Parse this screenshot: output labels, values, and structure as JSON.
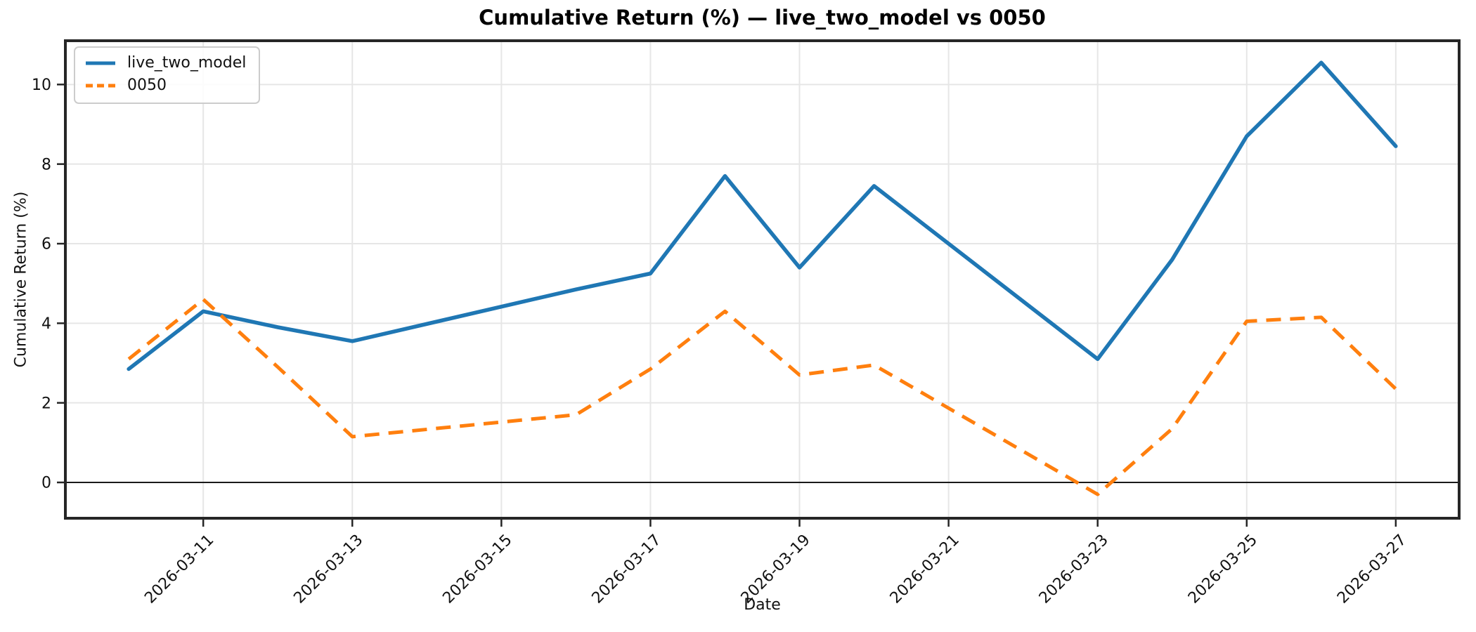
{
  "title": "Cumulative Return (%) — live_two_model vs 0050",
  "axes": {
    "x_label": "Date",
    "y_label": "Cumulative Return (%)"
  },
  "chart_data": {
    "type": "line",
    "title": "Cumulative Return (%) — live_two_model vs 0050",
    "xlabel": "Date",
    "ylabel": "Cumulative Return (%)",
    "x": [
      "2026-03-10",
      "2026-03-11",
      "2026-03-12",
      "2026-03-13",
      "2026-03-16",
      "2026-03-17",
      "2026-03-18",
      "2026-03-19",
      "2026-03-20",
      "2026-03-23",
      "2026-03-24",
      "2026-03-25",
      "2026-03-26",
      "2026-03-27"
    ],
    "series": [
      {
        "name": "live_two_model",
        "color": "#1f77b4",
        "line_style": "solid",
        "values": [
          2.85,
          4.3,
          3.9,
          3.55,
          4.85,
          5.25,
          7.7,
          5.4,
          7.45,
          3.1,
          5.6,
          8.7,
          10.55,
          8.45
        ]
      },
      {
        "name": "0050",
        "color": "#ff7f0e",
        "line_style": "dashed",
        "values": [
          3.1,
          4.6,
          2.9,
          1.15,
          1.7,
          2.85,
          4.3,
          2.7,
          2.95,
          -0.3,
          1.35,
          4.05,
          4.15,
          2.35
        ]
      }
    ],
    "x_tick_labels": [
      "2026-03-11",
      "2026-03-13",
      "2026-03-15",
      "2026-03-17",
      "2026-03-19",
      "2026-03-21",
      "2026-03-23",
      "2026-03-25",
      "2026-03-27"
    ],
    "x_tick_rotation": 45,
    "y_ticks": [
      0,
      2,
      4,
      6,
      8,
      10
    ],
    "ylim": [
      -0.9,
      11.1
    ],
    "grid": true,
    "zero_line": true,
    "legend_position": "upper left"
  }
}
